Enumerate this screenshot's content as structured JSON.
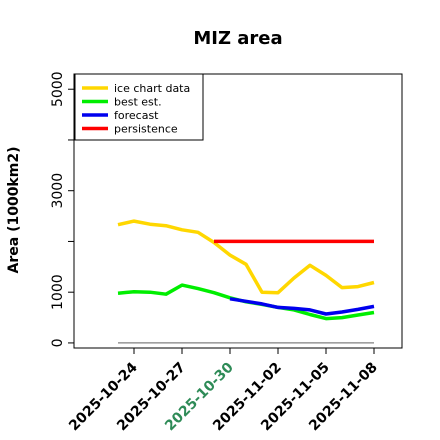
{
  "chart_data": {
    "type": "line",
    "title": "MIZ area",
    "ylabel": "Area (1000km2)",
    "x_start": "2025-10-22",
    "x_end": "2025-11-08",
    "ylim": [
      -100,
      5300
    ],
    "yticks": [
      0,
      1000,
      3000,
      5000
    ],
    "yticks_unlabeled": [
      2000,
      4000
    ],
    "xticks": [
      {
        "label": "2025-10-24",
        "color": "#000000"
      },
      {
        "label": "2025-10-27",
        "color": "#000000"
      },
      {
        "label": "2025-10-30",
        "color": "#2e8b57"
      },
      {
        "label": "2025-11-02",
        "color": "#000000"
      },
      {
        "label": "2025-11-05",
        "color": "#000000"
      },
      {
        "label": "2025-11-08",
        "color": "#000000"
      }
    ],
    "legend_position": "top-left",
    "series": [
      {
        "name": "ice chart data",
        "color": "#ffd700",
        "points": [
          [
            "2025-10-23",
            2330
          ],
          [
            "2025-10-24",
            2400
          ],
          [
            "2025-10-25",
            2340
          ],
          [
            "2025-10-26",
            2310
          ],
          [
            "2025-10-27",
            2230
          ],
          [
            "2025-10-28",
            2180
          ],
          [
            "2025-10-29",
            1980
          ],
          [
            "2025-10-30",
            1730
          ],
          [
            "2025-10-31",
            1550
          ],
          [
            "2025-11-01",
            1000
          ],
          [
            "2025-11-02",
            990
          ],
          [
            "2025-11-03",
            1280
          ],
          [
            "2025-11-04",
            1530
          ],
          [
            "2025-11-05",
            1330
          ],
          [
            "2025-11-06",
            1090
          ],
          [
            "2025-11-07",
            1110
          ],
          [
            "2025-11-08",
            1190
          ]
        ]
      },
      {
        "name": "best est.",
        "color": "#00ee00",
        "points": [
          [
            "2025-10-23",
            980
          ],
          [
            "2025-10-24",
            1010
          ],
          [
            "2025-10-25",
            1000
          ],
          [
            "2025-10-26",
            960
          ],
          [
            "2025-10-27",
            1140
          ],
          [
            "2025-10-28",
            1070
          ],
          [
            "2025-10-29",
            990
          ],
          [
            "2025-10-30",
            890
          ],
          [
            "2025-10-31",
            810
          ],
          [
            "2025-11-01",
            760
          ],
          [
            "2025-11-02",
            700
          ],
          [
            "2025-11-03",
            650
          ],
          [
            "2025-11-04",
            560
          ],
          [
            "2025-11-05",
            480
          ],
          [
            "2025-11-06",
            500
          ],
          [
            "2025-11-07",
            550
          ],
          [
            "2025-11-08",
            600
          ]
        ]
      },
      {
        "name": "forecast",
        "color": "#0000ee",
        "points": [
          [
            "2025-10-30",
            870
          ],
          [
            "2025-10-31",
            820
          ],
          [
            "2025-11-01",
            770
          ],
          [
            "2025-11-02",
            700
          ],
          [
            "2025-11-03",
            680
          ],
          [
            "2025-11-04",
            650
          ],
          [
            "2025-11-05",
            570
          ],
          [
            "2025-11-06",
            610
          ],
          [
            "2025-11-07",
            660
          ],
          [
            "2025-11-08",
            720
          ]
        ]
      },
      {
        "name": "persistence",
        "color": "#ff0000",
        "points": [
          [
            "2025-10-29",
            2000
          ],
          [
            "2025-11-08",
            2000
          ]
        ]
      },
      {
        "color": "#808080",
        "thin": true,
        "points": [
          [
            "2025-10-23",
            0
          ],
          [
            "2025-11-08",
            0
          ]
        ]
      }
    ]
  }
}
